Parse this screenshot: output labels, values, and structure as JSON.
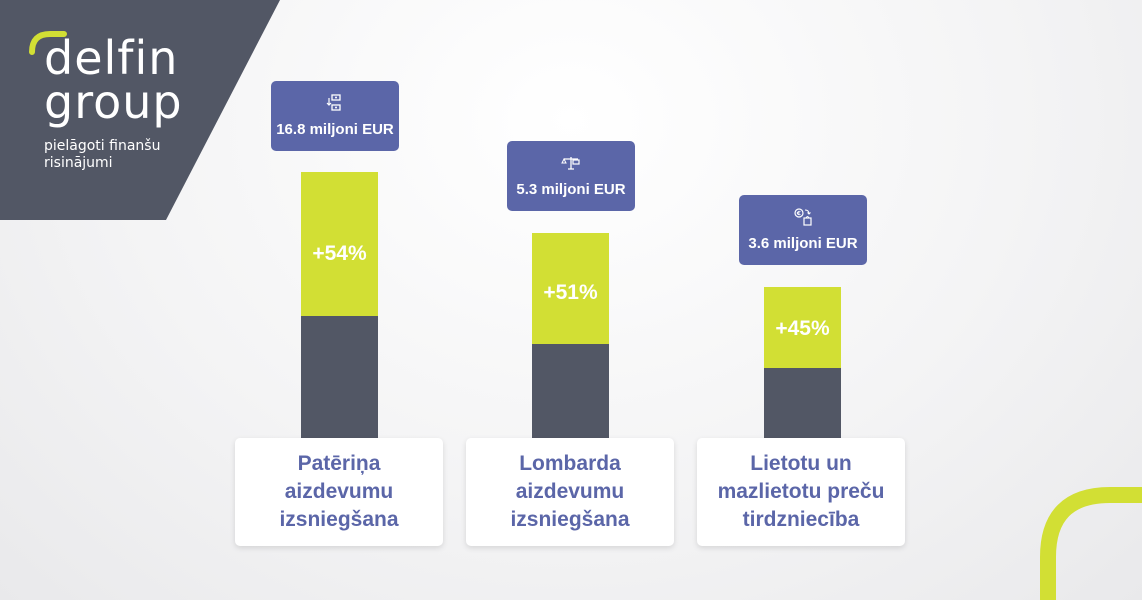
{
  "brand": {
    "logo_line1": "delfin",
    "logo_line2": "group",
    "tagline": "pielāgoti finanšu risinājumi",
    "colors": {
      "dark": "#525765",
      "accent": "#d2df34",
      "badge": "#5b66a8"
    }
  },
  "chart_data": {
    "type": "bar",
    "categories": [
      "Patēriņa aizdevumu izsniegšana",
      "Lombarda aizdevumu izsniegšana",
      "Lietotu un mazlietotu preču tirdzniecība"
    ],
    "values": [
      "16.8 miljoni EUR",
      "5.3 miljoni EUR",
      "3.6 miljoni EUR"
    ],
    "growth": [
      "+54%",
      "+51%",
      "+45%"
    ],
    "icons": [
      "money-exchange-icon",
      "scale-money-icon",
      "euro-bag-icon"
    ],
    "items": [
      {
        "label": "Patēriņa\naizdevumu\nizsniegšana",
        "amount": "16.8 miljoni EUR",
        "amount_value": 16.8,
        "growth": "+54%",
        "growth_value": 54
      },
      {
        "label": "Lombarda\naizdevumu\nizsniegšana",
        "amount": "5.3 miljoni EUR",
        "amount_value": 5.3,
        "growth": "+51%",
        "growth_value": 51
      },
      {
        "label": "Lietotu un\nmazlietotu preču\ntirdzniecība",
        "amount": "3.6 miljoni EUR",
        "amount_value": 3.6,
        "growth": "+45%",
        "growth_value": 45
      }
    ]
  }
}
